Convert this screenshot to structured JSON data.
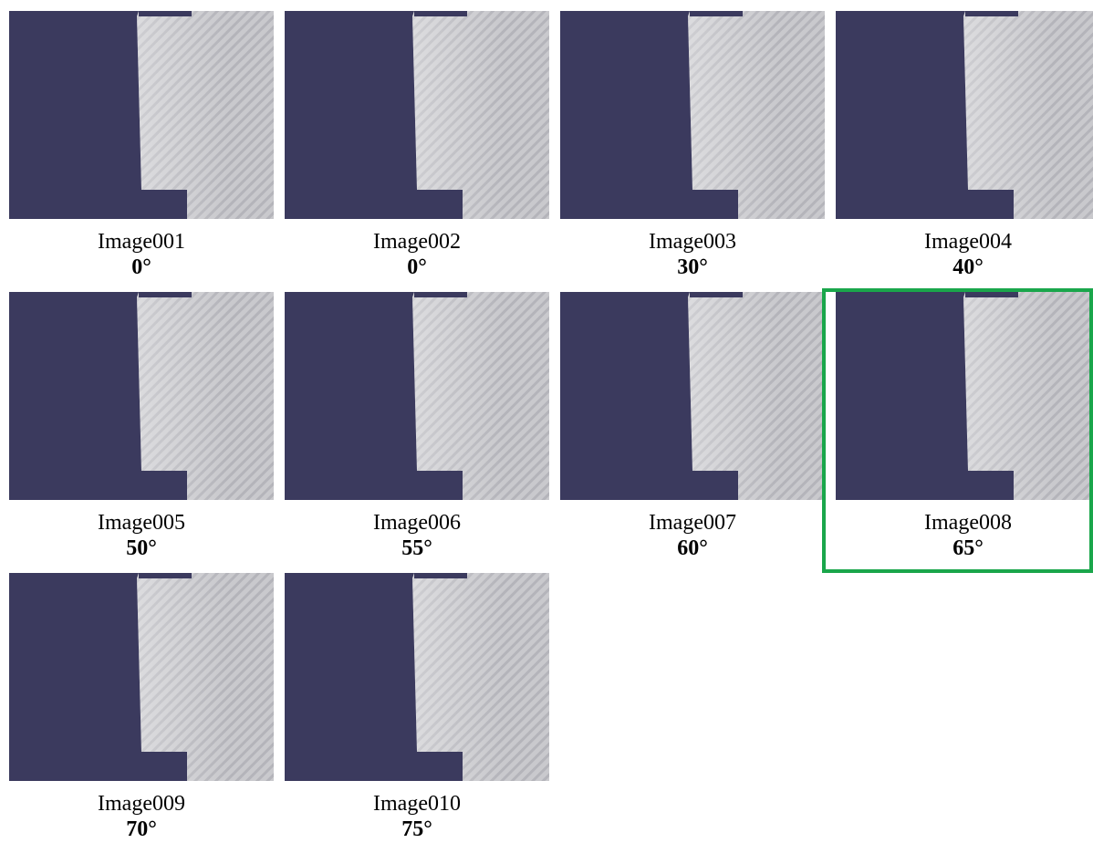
{
  "images": [
    {
      "name": "Image001",
      "angle": "0°"
    },
    {
      "name": "Image002",
      "angle": "0°"
    },
    {
      "name": "Image003",
      "angle": "30°"
    },
    {
      "name": "Image004",
      "angle": "40°"
    },
    {
      "name": "Image005",
      "angle": "50°"
    },
    {
      "name": "Image006",
      "angle": "55°"
    },
    {
      "name": "Image007",
      "angle": "60°"
    },
    {
      "name": "Image008",
      "angle": "65°"
    },
    {
      "name": "Image009",
      "angle": "70°"
    },
    {
      "name": "Image010",
      "angle": "75°"
    }
  ]
}
